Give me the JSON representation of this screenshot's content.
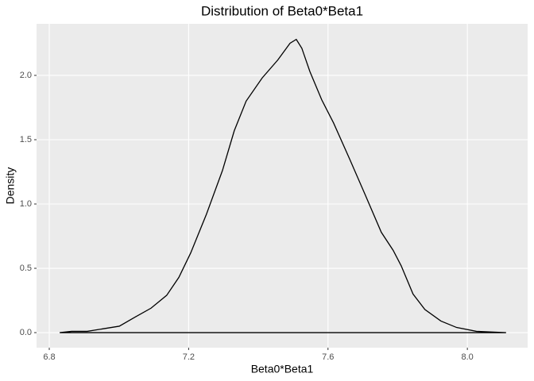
{
  "chart_data": {
    "type": "density",
    "title": "Distribution of Beta0*Beta1",
    "x_label": "Beta0*Beta1",
    "y_label": "Density",
    "x": [
      6.83,
      6.864,
      6.909,
      6.955,
      7.001,
      7.046,
      7.092,
      7.137,
      7.172,
      7.206,
      7.251,
      7.297,
      7.331,
      7.365,
      7.411,
      7.456,
      7.491,
      7.509,
      7.525,
      7.548,
      7.582,
      7.616,
      7.662,
      7.707,
      7.753,
      7.787,
      7.81,
      7.844,
      7.878,
      7.924,
      7.969,
      8.026,
      8.111
    ],
    "values": [
      0.0,
      0.01,
      0.01,
      0.03,
      0.05,
      0.12,
      0.19,
      0.29,
      0.43,
      0.62,
      0.92,
      1.26,
      1.57,
      1.8,
      1.98,
      2.12,
      2.25,
      2.28,
      2.21,
      2.03,
      1.81,
      1.63,
      1.35,
      1.07,
      0.78,
      0.64,
      0.52,
      0.3,
      0.18,
      0.09,
      0.04,
      0.01,
      0.0
    ],
    "color": "#000000",
    "panel_color": "#ebebeb",
    "grid": true,
    "xlim": [
      6.7635,
      8.173
    ],
    "ylim": [
      -0.117,
      2.401
    ],
    "xticks": [
      6.8,
      7.2,
      7.6,
      {
        "value": 8.0,
        "label": "8.0"
      }
    ],
    "yticks": [
      {
        "value": 0,
        "label": "0.0"
      },
      0.5,
      {
        "value": 1,
        "label": "1.0"
      },
      1.5,
      {
        "value": 2,
        "label": "2.0"
      }
    ]
  }
}
